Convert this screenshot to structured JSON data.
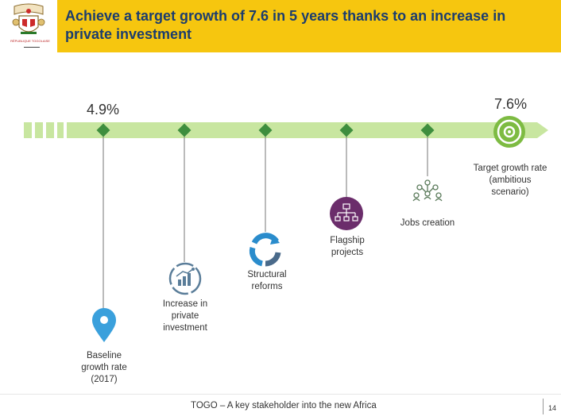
{
  "header": {
    "title": "Achieve a target growth of 7.6 in 5 years thanks to an increase in private investment",
    "emblem": "coat-of-arms-icon",
    "emblem_caption": "RÉPUBLIQUE TOGOLAISE"
  },
  "timeline": {
    "start_value": "4.9%",
    "end_value": "7.6%",
    "colors": {
      "bar": "#c8e6a0",
      "marker": "#3e8e3e",
      "target": "#7dbb42",
      "stem": "#777777"
    },
    "steps": [
      {
        "label": "Baseline growth rate (2017)",
        "icon": "location-pin-icon",
        "color": "#3aa0dc"
      },
      {
        "label": "Increase in private investment",
        "icon": "investment-chart-icon",
        "color": "#5a7d99"
      },
      {
        "label": "Structural reforms",
        "icon": "cycle-arrows-icon",
        "color": "#2a8ccc"
      },
      {
        "label": "Flagship projects",
        "icon": "hierarchy-icon",
        "color": "#6b2d6b"
      },
      {
        "label": "Jobs creation",
        "icon": "people-network-icon",
        "color": "#5a7a5a"
      },
      {
        "label": "Target growth rate (ambitious scenario)",
        "icon": "target-icon",
        "color": "#7dbb42"
      }
    ]
  },
  "footer": {
    "text": "TOGO – A key stakeholder into the new Africa",
    "page": "14"
  }
}
